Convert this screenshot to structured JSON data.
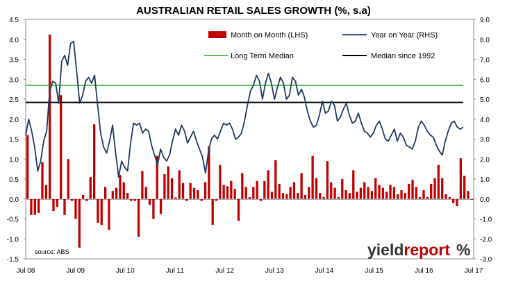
{
  "chart_data": {
    "type": "bar",
    "title": "AUSTRALIAN RETAIL SALES GROWTH (%, s.a)",
    "source_note": "source: ABS",
    "brand": {
      "part1": "yield",
      "part2": "report",
      "glyph": "%"
    },
    "left_axis": {
      "ylim": [
        -1.5,
        4.5
      ],
      "ticks": [
        "4.5",
        "4.0",
        "3.5",
        "3.0",
        "2.5",
        "2.0",
        "1.5",
        "1.0",
        "0.5",
        "0.0",
        "-0.5",
        "-1.0",
        "-1.5"
      ]
    },
    "right_axis": {
      "ylim": [
        -3.0,
        9.0
      ],
      "ticks": [
        "9.0",
        "8.0",
        "7.0",
        "6.0",
        "5.0",
        "4.0",
        "3.0",
        "2.0",
        "1.0",
        "0.0",
        "-1.0",
        "-2.0",
        "-3.0"
      ]
    },
    "x_tick_labels": [
      "Jul 08",
      "Jul 09",
      "Jul 10",
      "Jul 11",
      "Jul 12",
      "Jul 13",
      "Jul 14",
      "Jul 15",
      "Jul 16",
      "Jul 17"
    ],
    "legend": {
      "bar": "Month on Month (LHS)",
      "line": "Year on Year (RHS)",
      "long_term_median": "Long Term Median",
      "median_1992": "Median since 1992"
    },
    "reference_lines": {
      "long_term_median_lhs": 2.85,
      "median_since_1992_lhs": 2.42
    },
    "colors": {
      "bars": "#c00000",
      "line": "#1f3864",
      "long_term_median": "#22aa22",
      "median_1992": "#000000",
      "brand_dark": "#333333",
      "brand_red": "#c00000"
    },
    "series": [
      {
        "name": "Month on Month (LHS)",
        "axis": "left",
        "values": [
          1.6,
          -0.4,
          -0.4,
          -0.35,
          0.92,
          0.35,
          4.12,
          -0.3,
          -0.2,
          2.6,
          -0.4,
          1.0,
          -0.05,
          -0.5,
          -1.22,
          0.1,
          -0.05,
          0.55,
          1.87,
          -0.6,
          -0.65,
          0.3,
          -0.78,
          0.2,
          0.28,
          0.6,
          0.42,
          0.15,
          -0.05,
          -0.05,
          -0.95,
          0.7,
          0.3,
          -0.15,
          -0.5,
          1.08,
          -0.38,
          0.62,
          0.82,
          0.52,
          0.04,
          0.72,
          0.4,
          -0.05,
          0.4,
          0.28,
          0.22,
          -0.05,
          0.42,
          1.32,
          -0.65,
          -0.05,
          0.85,
          0.35,
          0.32,
          0.45,
          0.25,
          -0.55,
          0.65,
          0.3,
          0.05,
          0.3,
          0.45,
          -0.05,
          0.45,
          0.72,
          0.18,
          0.97,
          0.38,
          0.15,
          0.12,
          0.3,
          0.42,
          0.15,
          0.65,
          0.1,
          0.3,
          1.08,
          0.52,
          0.15,
          0.05,
          0.95,
          0.42,
          0.28,
          0.05,
          0.5,
          0.22,
          0.15,
          0.72,
          0.18,
          0.28,
          0.42,
          0.3,
          0.2,
          0.52,
          0.35,
          0.28,
          0.18,
          0.35,
          0.3,
          0.12,
          0.22,
          0.15,
          0.38,
          0.48,
          0.3,
          0.05,
          0.22,
          0.05,
          0.38,
          0.52,
          0.85,
          0.52,
          0.12,
          0.05,
          -0.1,
          -0.18,
          1.02,
          0.58,
          0.2,
          -0.02
        ]
      },
      {
        "name": "Year on Year (RHS)",
        "axis": "right",
        "values": [
          3.2,
          4.0,
          3.4,
          2.6,
          1.4,
          1.9,
          2.9,
          3.4,
          5.4,
          5.9,
          5.8,
          4.8,
          6.9,
          7.2,
          6.7,
          7.8,
          7.9,
          6.4,
          4.8,
          5.2,
          5.9,
          6.1,
          5.8,
          6.2,
          4.7,
          3.3,
          2.6,
          2.3,
          2.9,
          3.7,
          2.3,
          1.1,
          1.9,
          1.6,
          1.4,
          2.8,
          3.8,
          3.7,
          3.8,
          3.3,
          3.5,
          3.4,
          2.7,
          2.2,
          1.7,
          2.5,
          2.1,
          1.9,
          2.2,
          2.9,
          3.5,
          3.2,
          3.7,
          3.4,
          2.8,
          3.1,
          3.4,
          2.9,
          2.5,
          2.1,
          1.3,
          2.4,
          3.0,
          3.2,
          3.0,
          3.4,
          3.8,
          3.7,
          3.8,
          3.5,
          3.0,
          3.1,
          3.3,
          3.9,
          4.7,
          5.4,
          5.7,
          6.2,
          5.9,
          5.0,
          5.8,
          6.3,
          5.8,
          5.0,
          5.6,
          6.1,
          5.8,
          5.0,
          5.2,
          6.1,
          5.9,
          5.2,
          5.5,
          5.1,
          4.4,
          3.9,
          3.6,
          3.7,
          4.2,
          4.9,
          4.3,
          4.4,
          4.9,
          4.7,
          3.9,
          4.1,
          4.5,
          4.8,
          4.2,
          3.8,
          3.9,
          4.3,
          3.8,
          3.4,
          3.3,
          3.1,
          3.3,
          3.7,
          3.9,
          3.5,
          3.0,
          2.9,
          3.2,
          3.5,
          2.9,
          3.3,
          3.1,
          2.7,
          2.6,
          2.5,
          2.9,
          3.6,
          3.9,
          3.7,
          3.4,
          3.2,
          3.1,
          2.7,
          2.4,
          2.2,
          2.9,
          3.4,
          3.8,
          3.9,
          3.6,
          3.5,
          3.6
        ]
      }
    ]
  }
}
